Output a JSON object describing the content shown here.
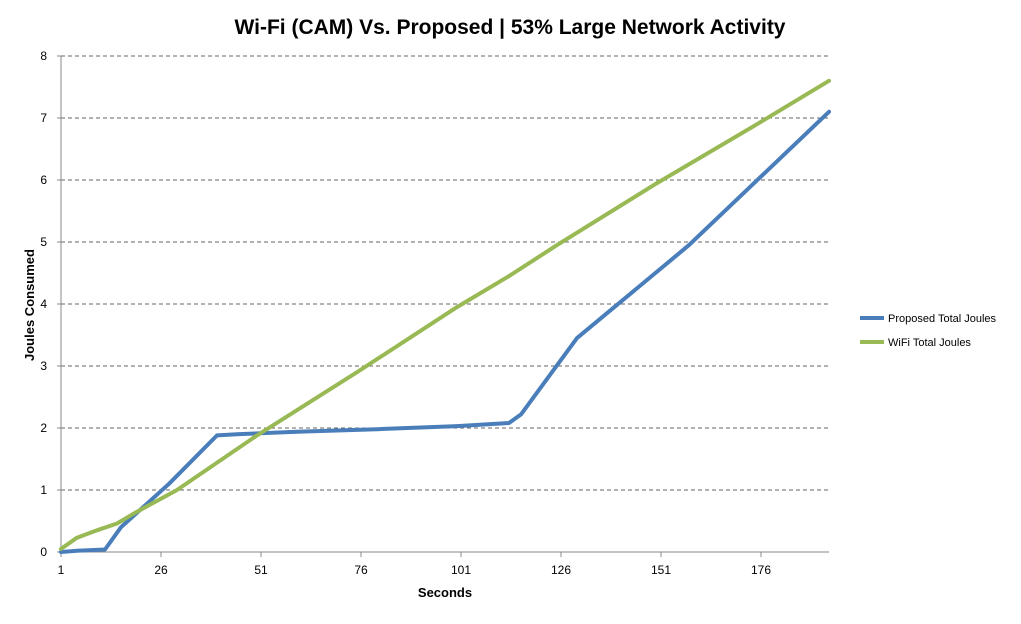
{
  "chart_data": {
    "type": "line",
    "title": "Wi-Fi (CAM) Vs. Proposed |  53% Large Network Activity",
    "xlabel": "Seconds",
    "ylabel": "Joules Consumed",
    "xlim": [
      1,
      193
    ],
    "ylim": [
      0,
      8
    ],
    "x_ticks": [
      "1",
      "26",
      "51",
      "76",
      "101",
      "126",
      "151",
      "176"
    ],
    "y_ticks": [
      "0",
      "1",
      "2",
      "3",
      "4",
      "5",
      "6",
      "7",
      "8"
    ],
    "grid": "horizontal-dashed",
    "legend_position": "right",
    "series": [
      {
        "name": "Proposed Total Joules",
        "color": "#4a7ebb",
        "x": [
          1,
          5,
          12,
          16,
          28,
          40,
          45,
          60,
          80,
          100,
          113,
          116,
          130,
          158,
          193
        ],
        "y": [
          0,
          0.02,
          0.04,
          0.4,
          1.1,
          1.88,
          1.9,
          1.94,
          1.98,
          2.03,
          2.08,
          2.22,
          3.45,
          4.95,
          7.1
        ]
      },
      {
        "name": "WiFi Total Joules",
        "color": "#98b954",
        "x": [
          1,
          5,
          10,
          15,
          20,
          30,
          50,
          75,
          100,
          113,
          125,
          150,
          175,
          193
        ],
        "y": [
          0.05,
          0.23,
          0.35,
          0.46,
          0.65,
          1.0,
          1.88,
          2.9,
          3.95,
          4.45,
          4.95,
          5.95,
          6.9,
          7.6
        ]
      }
    ]
  }
}
